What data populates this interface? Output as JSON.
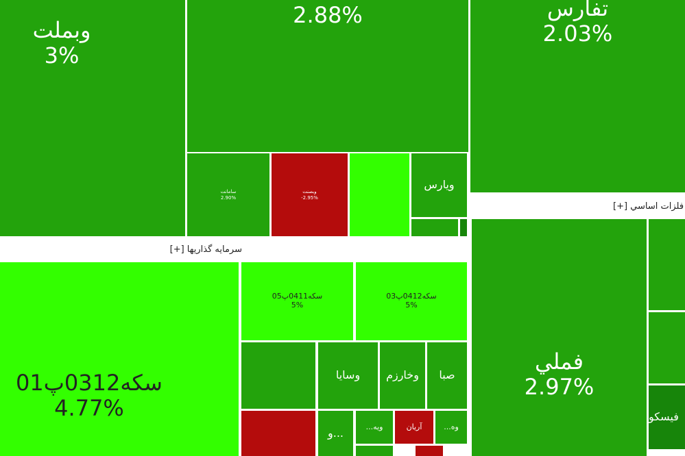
{
  "tiles": [
    {
      "label": "وبملت",
      "change": "3%"
    },
    {
      "change": "2.88%"
    },
    {
      "label": "سامانت",
      "change": "2.90%"
    },
    {
      "label": "وبصنت",
      "change": "-2.95%"
    },
    {
      "label": "ويارس"
    },
    {
      "label": "تفارس",
      "change": "2.03%"
    },
    {
      "label": "فملي",
      "change": "2.97%"
    },
    {
      "label": "فيسكو"
    },
    {
      "label": "سكه0312پ01",
      "change": "4.77%"
    },
    {
      "label": "سكه0411پ05",
      "change": "5%"
    },
    {
      "label": "سكه0412پ03",
      "change": "5%"
    },
    {
      "label": "وسايا"
    },
    {
      "label": "وخارزم"
    },
    {
      "label": "صبا"
    },
    {
      "label": "آريان"
    },
    {
      "label": "...ويه"
    },
    {
      "label": "...وه"
    },
    {
      "label": "و..."
    }
  ],
  "groups": [
    {
      "title": "فلزات اساسي [+]"
    },
    {
      "title": "سرمايه گذاريها [+]"
    }
  ]
}
